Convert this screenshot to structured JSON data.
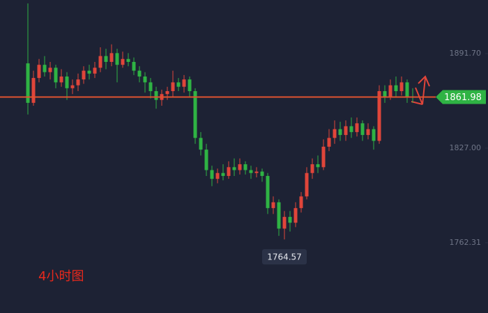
{
  "chart_data": {
    "type": "candlestick",
    "annotation": "4小时图",
    "up_color": "#e0453a",
    "down_color": "#2fb344",
    "ylim": [
      1714.26,
      1928.33
    ],
    "yticks": [
      {
        "value": 1891.7,
        "label": "1891.70"
      },
      {
        "value": 1827,
        "label": "1827.00"
      },
      1762.31
    ],
    "last_price": 1861.98,
    "min_price": 1764.57,
    "open": [
      1885,
      1858,
      1875,
      1884,
      1879,
      1882,
      1872,
      1876,
      1868,
      1870,
      1874,
      1880,
      1878,
      1882,
      1890,
      1886,
      1892,
      1884,
      1888,
      1886,
      1880,
      1876,
      1872,
      1866,
      1860,
      1864,
      1866,
      1872,
      1869,
      1874,
      1866,
      1834,
      1826,
      1812,
      1806,
      1810,
      1808,
      1814,
      1812,
      1816,
      1812,
      1810,
      1811,
      1808,
      1786,
      1790,
      1772,
      1780,
      1776,
      1786,
      1794,
      1810,
      1816,
      1814,
      1828,
      1834,
      1840,
      1836,
      1842,
      1838,
      1844,
      1836,
      1840,
      1832,
      1866,
      1862,
      1870,
      1866,
      1872,
      1862
    ],
    "high": [
      1926,
      1880,
      1888,
      1890,
      1886,
      1884,
      1881,
      1879,
      1874,
      1878,
      1883,
      1884,
      1886,
      1896,
      1895,
      1898,
      1895,
      1893,
      1892,
      1889,
      1883,
      1879,
      1875,
      1869,
      1867,
      1869,
      1880,
      1875,
      1877,
      1876,
      1868,
      1838,
      1830,
      1815,
      1813,
      1816,
      1818,
      1820,
      1820,
      1818,
      1815,
      1814,
      1813,
      1810,
      1794,
      1792,
      1784,
      1784,
      1790,
      1797,
      1814,
      1820,
      1822,
      1833,
      1840,
      1846,
      1845,
      1846,
      1848,
      1848,
      1846,
      1844,
      1842,
      1870,
      1870,
      1874,
      1876,
      1876,
      1874,
      1868
    ],
    "low": [
      1850,
      1856,
      1872,
      1876,
      1874,
      1868,
      1869,
      1860,
      1864,
      1866,
      1871,
      1874,
      1875,
      1879,
      1881,
      1883,
      1872,
      1882,
      1883,
      1877,
      1872,
      1865,
      1861,
      1854,
      1856,
      1860,
      1862,
      1866,
      1865,
      1862,
      1830,
      1822,
      1808,
      1801,
      1803,
      1805,
      1806,
      1808,
      1809,
      1809,
      1806,
      1807,
      1804,
      1782,
      1782,
      1767,
      1764.57,
      1770,
      1773,
      1783,
      1792,
      1806,
      1810,
      1812,
      1825,
      1830,
      1832,
      1832,
      1834,
      1835,
      1832,
      1833,
      1826,
      1830,
      1858,
      1860,
      1862,
      1863,
      1858,
      1858
    ],
    "close": [
      1858,
      1875,
      1884,
      1879,
      1882,
      1872,
      1876,
      1868,
      1870,
      1874,
      1880,
      1878,
      1882,
      1890,
      1886,
      1892,
      1884,
      1888,
      1886,
      1880,
      1876,
      1872,
      1866,
      1860,
      1864,
      1866,
      1872,
      1869,
      1874,
      1866,
      1834,
      1826,
      1812,
      1806,
      1810,
      1808,
      1814,
      1812,
      1816,
      1812,
      1810,
      1811,
      1808,
      1786,
      1790,
      1772,
      1780,
      1776,
      1786,
      1794,
      1810,
      1816,
      1814,
      1828,
      1834,
      1840,
      1836,
      1842,
      1838,
      1844,
      1836,
      1840,
      1832,
      1866,
      1862,
      1870,
      1866,
      1872,
      1862,
      1861.98
    ]
  }
}
